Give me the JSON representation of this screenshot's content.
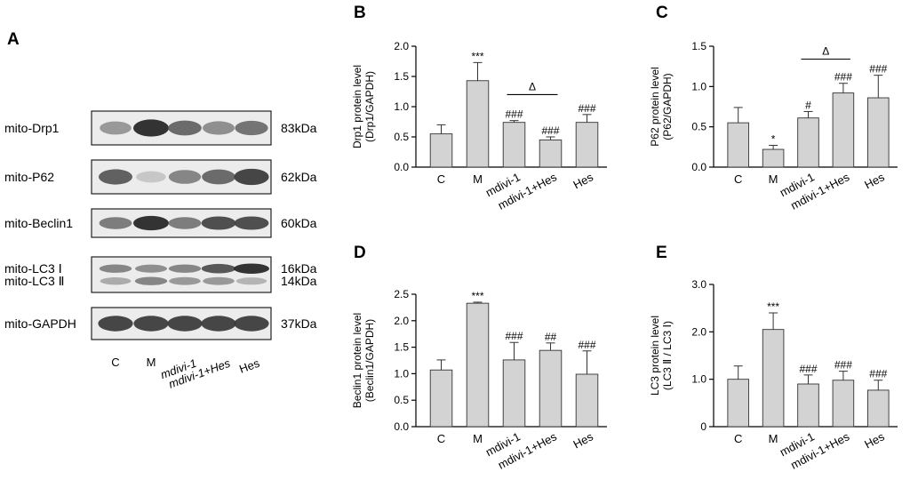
{
  "panel_a": {
    "letter": "A",
    "lanes": [
      "C",
      "M",
      "mdivi-1",
      "mdivi-1+Hes",
      "Hes"
    ],
    "blots": [
      {
        "label": "mito-Drp1",
        "size": "83kDa",
        "intensities": [
          0.45,
          1.0,
          0.7,
          0.5,
          0.65
        ]
      },
      {
        "label": "mito-P62",
        "size": "62kDa",
        "intensities": [
          0.75,
          0.2,
          0.55,
          0.7,
          0.9
        ]
      },
      {
        "label": "mito-Beclin1",
        "size": "60kDa",
        "intensities": [
          0.6,
          1.0,
          0.6,
          0.85,
          0.85
        ]
      },
      {
        "label": "mito-LC3 Ⅰ",
        "size": "16kDa",
        "intensities": [
          0.55,
          0.5,
          0.55,
          0.8,
          1.0
        ]
      },
      {
        "label": "mito-LC3 Ⅱ",
        "size": "14kDa",
        "intensities": [
          0.35,
          0.55,
          0.45,
          0.45,
          0.3
        ]
      },
      {
        "label": "mito-GAPDH",
        "size": "37kDa",
        "intensities": [
          0.9,
          0.9,
          0.9,
          0.9,
          0.9
        ]
      }
    ]
  },
  "chart_data": [
    {
      "letter": "B",
      "type": "bar",
      "ylabel_line1": "Drp1 protein level",
      "ylabel_line2": "(Drp1/GAPDH)",
      "categories": [
        "C",
        "M",
        "mdivi-1",
        "mdivi-1+Hes",
        "Hes"
      ],
      "values": [
        0.55,
        1.43,
        0.74,
        0.45,
        0.74
      ],
      "errors": [
        0.15,
        0.3,
        0.03,
        0.05,
        0.13
      ],
      "significance": [
        "",
        "***",
        "###",
        "###",
        "###"
      ],
      "ylim": [
        0,
        2.0
      ],
      "yticks": [
        "0.0",
        "0.5",
        "1.0",
        "1.5",
        "2.0"
      ],
      "comparison": {
        "from": 2,
        "to": 3,
        "label": "Δ",
        "y": 1.2
      }
    },
    {
      "letter": "C",
      "type": "bar",
      "ylabel_line1": "P62 protein level",
      "ylabel_line2": "(P62/GAPDH)",
      "categories": [
        "C",
        "M",
        "mdivi-1",
        "mdivi-1+Hes",
        "Hes"
      ],
      "values": [
        0.55,
        0.22,
        0.61,
        0.92,
        0.86
      ],
      "errors": [
        0.19,
        0.05,
        0.08,
        0.12,
        0.28
      ],
      "significance": [
        "",
        "*",
        "#",
        "###",
        "###"
      ],
      "ylim": [
        0,
        1.5
      ],
      "yticks": [
        "0.0",
        "0.5",
        "1.0",
        "1.5"
      ],
      "comparison": {
        "from": 2,
        "to": 3,
        "label": "Δ",
        "y": 1.34
      }
    },
    {
      "letter": "D",
      "type": "bar",
      "ylabel_line1": "Beclin1 protein level",
      "ylabel_line2": "(Beclin1/GAPDH)",
      "categories": [
        "C",
        "M",
        "mdivi-1",
        "mdivi-1+Hes",
        "Hes"
      ],
      "values": [
        1.07,
        2.33,
        1.26,
        1.44,
        0.99
      ],
      "errors": [
        0.19,
        0.02,
        0.33,
        0.14,
        0.44
      ],
      "significance": [
        "",
        "***",
        "###",
        "##",
        "###"
      ],
      "ylim": [
        0,
        2.5
      ],
      "yticks": [
        "0.0",
        "0.5",
        "1.0",
        "1.5",
        "2.0",
        "2.5"
      ]
    },
    {
      "letter": "E",
      "type": "bar",
      "ylabel_line1": "LC3 protein level",
      "ylabel_line2": "(LC3 Ⅱ / LC3 Ⅰ)",
      "categories": [
        "C",
        "M",
        "mdivi-1",
        "mdivi-1+Hes",
        "Hes"
      ],
      "values": [
        1.0,
        2.05,
        0.9,
        0.98,
        0.77
      ],
      "errors": [
        0.28,
        0.35,
        0.19,
        0.19,
        0.21
      ],
      "significance": [
        "",
        "***",
        "###",
        "###",
        "###"
      ],
      "ylim": [
        0,
        3.0
      ],
      "yticks": [
        "0",
        "1.0",
        "2.0",
        "3.0"
      ]
    }
  ]
}
